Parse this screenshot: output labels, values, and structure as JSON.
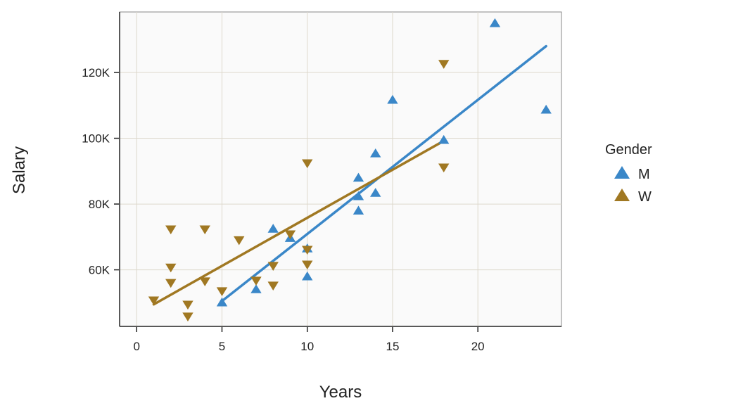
{
  "chart_data": {
    "type": "scatter",
    "title": "",
    "xlabel": "Years",
    "ylabel": "Salary",
    "xlim": [
      -1,
      24.9
    ],
    "ylim": [
      42.8,
      138.4
    ],
    "x_ticks": [
      0,
      5,
      10,
      15,
      20
    ],
    "x_tick_labels": [
      "0",
      "5",
      "10",
      "15",
      "20"
    ],
    "y_ticks": [
      60,
      80,
      100,
      120
    ],
    "y_tick_labels": [
      "60K",
      "80K",
      "100K",
      "120K"
    ],
    "y_units": "thousands",
    "grid": true,
    "legend": {
      "title": "Gender",
      "placement": "right"
    },
    "series": [
      {
        "name": "M",
        "color": "#3a87c8",
        "marker": "triangle-up",
        "points": [
          [
            5,
            50.1
          ],
          [
            7,
            54.1
          ],
          [
            8,
            72.5
          ],
          [
            9,
            69.7
          ],
          [
            10,
            66.5
          ],
          [
            10,
            58
          ],
          [
            13,
            88
          ],
          [
            13,
            82.4
          ],
          [
            13,
            78
          ],
          [
            14,
            95.4
          ],
          [
            14,
            83.4
          ],
          [
            15,
            111.7
          ],
          [
            18,
            99.5
          ],
          [
            21,
            135
          ],
          [
            24,
            108.7
          ]
        ],
        "fit": [
          [
            5,
            50.5
          ],
          [
            24,
            128
          ]
        ]
      },
      {
        "name": "W",
        "color": "#a07822",
        "marker": "triangle-down",
        "points": [
          [
            1,
            50.7
          ],
          [
            2,
            72.3
          ],
          [
            2,
            60.7
          ],
          [
            2,
            56
          ],
          [
            3,
            49.4
          ],
          [
            3,
            45.8
          ],
          [
            4,
            72.3
          ],
          [
            4,
            56.5
          ],
          [
            5,
            53.5
          ],
          [
            6,
            69
          ],
          [
            7,
            56.7
          ],
          [
            8,
            61.2
          ],
          [
            8,
            55.2
          ],
          [
            9,
            70.8
          ],
          [
            10,
            92.4
          ],
          [
            10,
            66.1
          ],
          [
            10,
            61.6
          ],
          [
            18,
            122.6
          ],
          [
            18,
            91.1
          ]
        ],
        "fit": [
          [
            1,
            49.5
          ],
          [
            18,
            99.2
          ]
        ]
      }
    ]
  }
}
